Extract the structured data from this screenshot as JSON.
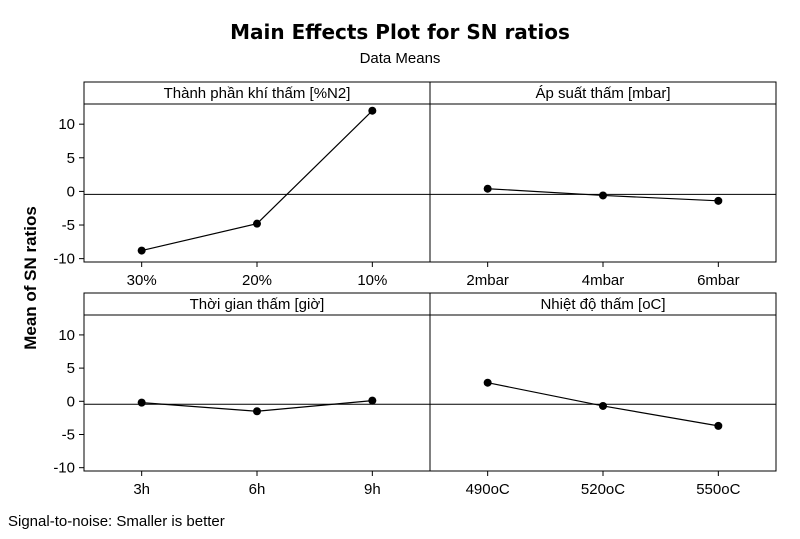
{
  "title": "Main Effects Plot for SN ratios",
  "subtitle": "Data Means",
  "footnote": "Signal-to-noise: Smaller is better",
  "chart_data": {
    "type": "line",
    "title": "Main Effects Plot for SN ratios",
    "subtitle": "Data Means",
    "ylabel": "Mean of SN ratios",
    "ylim": [
      -10.5,
      13
    ],
    "yticks": [
      10,
      5,
      0,
      -5,
      -10
    ],
    "reference_line": -0.45,
    "grid": false,
    "panels": [
      {
        "name": "Thành phần khí thấm [%N2]",
        "categories": [
          "30%",
          "20%",
          "10%"
        ],
        "values": [
          -8.8,
          -4.8,
          12.0
        ]
      },
      {
        "name": "Áp suất thấm [mbar]",
        "categories": [
          "2mbar",
          "4mbar",
          "6mbar"
        ],
        "values": [
          0.4,
          -0.6,
          -1.4
        ]
      },
      {
        "name": "Thời gian thấm [giờ]",
        "categories": [
          "3h",
          "6h",
          "9h"
        ],
        "values": [
          -0.2,
          -1.5,
          0.1
        ]
      },
      {
        "name": "Nhiệt độ thấm [oC]",
        "categories": [
          "490oC",
          "520oC",
          "550oC"
        ],
        "values": [
          2.8,
          -0.7,
          -3.7
        ]
      }
    ]
  }
}
